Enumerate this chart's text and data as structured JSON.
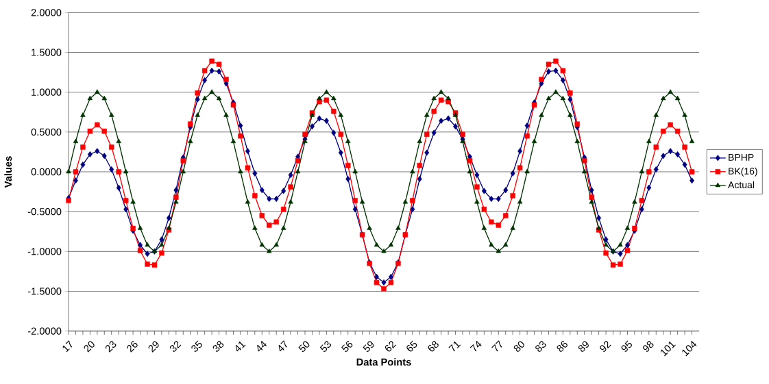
{
  "chart_data": {
    "type": "line",
    "xlabel": "Data Points",
    "ylabel": "Values",
    "categories": [
      "17",
      null,
      null,
      "20",
      null,
      null,
      "23",
      null,
      null,
      "26",
      null,
      null,
      "29",
      null,
      null,
      "32",
      null,
      null,
      "35",
      null,
      null,
      "38",
      null,
      null,
      "41",
      null,
      null,
      "44",
      null,
      null,
      "47",
      null,
      null,
      "50",
      null,
      null,
      "53",
      null,
      null,
      "56",
      null,
      null,
      "59",
      null,
      null,
      "62",
      null,
      null,
      "65",
      null,
      null,
      "68",
      null,
      null,
      "71",
      null,
      null,
      "74",
      null,
      null,
      "77",
      null,
      null,
      "80",
      null,
      null,
      "83",
      null,
      null,
      "86",
      null,
      null,
      "89",
      null,
      null,
      "92",
      null,
      null,
      "95",
      null,
      null,
      "98",
      null,
      null,
      "101",
      null,
      null,
      "104"
    ],
    "series": [
      {
        "name": "BPHP",
        "color": "#000080",
        "marker": "diamond",
        "values": [
          -0.33,
          -0.11,
          0.09,
          0.22,
          0.26,
          0.2,
          0.03,
          -0.2,
          -0.47,
          -0.74,
          -0.92,
          -1.03,
          -1.0,
          -0.85,
          -0.58,
          -0.23,
          0.18,
          0.56,
          0.91,
          1.15,
          1.27,
          1.26,
          1.11,
          0.87,
          0.58,
          0.26,
          -0.02,
          -0.23,
          -0.34,
          -0.34,
          -0.24,
          -0.04,
          0.19,
          0.41,
          0.57,
          0.67,
          0.64,
          0.49,
          0.24,
          -0.09,
          -0.47,
          -0.79,
          -1.14,
          -1.32,
          -1.39,
          -1.32,
          -1.14,
          -0.79,
          -0.47,
          -0.09,
          0.24,
          0.49,
          0.64,
          0.67,
          0.57,
          0.41,
          0.19,
          -0.04,
          -0.24,
          -0.34,
          -0.34,
          -0.23,
          -0.02,
          0.26,
          0.58,
          0.87,
          1.11,
          1.26,
          1.27,
          1.15,
          0.91,
          0.56,
          0.18,
          -0.23,
          -0.58,
          -0.85,
          -1.0,
          -1.03,
          -0.92,
          -0.74,
          -0.47,
          -0.2,
          0.03,
          0.2,
          0.26,
          0.22,
          0.09,
          -0.11
        ]
      },
      {
        "name": "BK(16)",
        "color": "#ff0000",
        "marker": "square",
        "values": [
          -0.36,
          0,
          0.31,
          0.51,
          0.59,
          0.51,
          0.31,
          0,
          -0.36,
          -0.71,
          -0.99,
          -1.16,
          -1.17,
          -1.02,
          -0.73,
          -0.32,
          0.14,
          0.6,
          0.99,
          1.27,
          1.39,
          1.35,
          1.16,
          0.84,
          0.45,
          0.05,
          -0.3,
          -0.55,
          -0.67,
          -0.63,
          -0.47,
          -0.19,
          0.14,
          0.47,
          0.74,
          0.88,
          0.9,
          0.76,
          0.47,
          0.08,
          -0.36,
          -0.79,
          -1.15,
          -1.39,
          -1.47,
          -1.39,
          -1.15,
          -0.79,
          -0.36,
          0.08,
          0.47,
          0.76,
          0.9,
          0.88,
          0.74,
          0.47,
          0.14,
          -0.19,
          -0.47,
          -0.63,
          -0.67,
          -0.55,
          -0.3,
          0.05,
          0.45,
          0.84,
          1.16,
          1.35,
          1.39,
          1.27,
          0.99,
          0.6,
          0.14,
          -0.32,
          -0.73,
          -1.02,
          -1.17,
          -1.16,
          -0.99,
          -0.71,
          -0.36,
          0,
          0.31,
          0.51,
          0.59,
          0.51,
          0.31,
          0
        ]
      },
      {
        "name": "Actual",
        "color": "#003300",
        "marker": "triangle",
        "values": [
          0,
          0.38,
          0.71,
          0.92,
          1,
          0.92,
          0.71,
          0.38,
          0,
          -0.38,
          -0.71,
          -0.92,
          -1,
          -0.92,
          -0.71,
          -0.38,
          0,
          0.38,
          0.71,
          0.92,
          1,
          0.92,
          0.71,
          0.38,
          0,
          -0.38,
          -0.71,
          -0.92,
          -1,
          -0.92,
          -0.71,
          -0.38,
          0,
          0.38,
          0.71,
          0.92,
          1,
          0.92,
          0.71,
          0.38,
          0,
          -0.38,
          -0.71,
          -0.92,
          -1,
          -0.92,
          -0.71,
          -0.38,
          0,
          0.38,
          0.71,
          0.92,
          1,
          0.92,
          0.71,
          0.38,
          0,
          -0.38,
          -0.71,
          -0.92,
          -1,
          -0.92,
          -0.71,
          -0.38,
          0,
          0.38,
          0.71,
          0.92,
          1,
          0.92,
          0.71,
          0.38,
          0,
          -0.38,
          -0.71,
          -0.92,
          -1,
          -0.92,
          -0.71,
          -0.38,
          0,
          0.38,
          0.71,
          0.92,
          1,
          0.92,
          0.71,
          0.38
        ]
      }
    ],
    "ylim": [
      -2,
      2
    ],
    "yticks": [
      {
        "value": -2,
        "label": "-2.0000"
      },
      {
        "value": -1.5,
        "label": "-1.5000"
      },
      {
        "value": -1,
        "label": "-1.0000"
      },
      {
        "value": -0.5,
        "label": "-0.5000"
      },
      {
        "value": 0,
        "label": "0.0000"
      },
      {
        "value": 0.5,
        "label": "0.5000"
      },
      {
        "value": 1,
        "label": "1.0000"
      },
      {
        "value": 1.5,
        "label": "1.5000"
      },
      {
        "value": 2,
        "label": "2.0000"
      }
    ],
    "grid": "y",
    "legend": "right",
    "line_style": "solid"
  }
}
